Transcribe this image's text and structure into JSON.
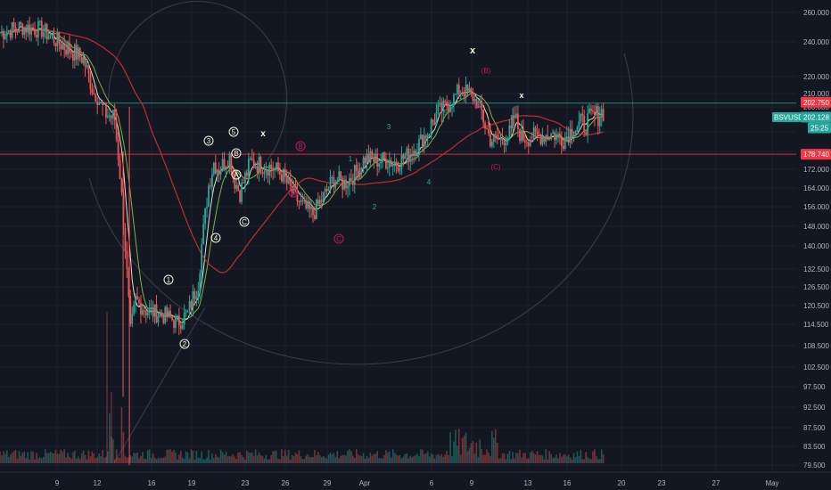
{
  "symbol": "BSVUSD",
  "chart_data": {
    "type": "candlestick",
    "price_axis": {
      "ticks": [
        260.0,
        240.0,
        220.0,
        210.0,
        200.0,
        190.0,
        180.0,
        172.0,
        164.0,
        156.0,
        148.0,
        140.0,
        132.5,
        126.5,
        120.5,
        114.5,
        108.5,
        102.5,
        97.5,
        92.5,
        87.5,
        83.5,
        79.5
      ],
      "tick_labels": [
        "260.000",
        "240.000",
        "220.000",
        "210.000",
        "200.000",
        "",
        "",
        "172.000",
        "164.000",
        "156.000",
        "148.000",
        "140.000",
        "132.500",
        "126.500",
        "120.500",
        "114.500",
        "108.500",
        "102.500",
        "97.500",
        "92.500",
        "87.500",
        "83.500",
        "79.500"
      ]
    },
    "time_axis": {
      "labels": [
        "9",
        "12",
        "16",
        "19",
        "23",
        "26",
        "29",
        "Apr",
        "6",
        "9",
        "13",
        "16",
        "20",
        "23",
        "27",
        "May"
      ]
    },
    "price_badges": [
      {
        "value": "202.750",
        "color": "#f23645"
      },
      {
        "value": "202.128",
        "prefix": "BSVUSD",
        "color": "#26a69a"
      },
      {
        "value": "25:25",
        "color": "#26a69a"
      },
      {
        "value": "178.740",
        "color": "#f23645"
      }
    ],
    "horizontal_lines": [
      {
        "price": 202.75,
        "color": "#26a69a"
      },
      {
        "price": 178.74,
        "color": "#f23645"
      }
    ],
    "wave_labels": [
      "1",
      "2",
      "3",
      "4",
      "5",
      "A",
      "B",
      "C",
      "x",
      "(A)",
      "(B)",
      "(C)"
    ],
    "close_path": [
      [
        0,
        246
      ],
      [
        2,
        250
      ],
      [
        4,
        248
      ],
      [
        6,
        238
      ],
      [
        8,
        230
      ],
      [
        9,
        210
      ],
      [
        10,
        198
      ],
      [
        11,
        195
      ],
      [
        11.5,
        170
      ],
      [
        12,
        140
      ],
      [
        12.5,
        112
      ],
      [
        13,
        122
      ],
      [
        14,
        119
      ],
      [
        15,
        118
      ],
      [
        16,
        117
      ],
      [
        17,
        115
      ],
      [
        18,
        118
      ],
      [
        19,
        128
      ],
      [
        20,
        165
      ],
      [
        20.5,
        175
      ],
      [
        21,
        172
      ],
      [
        22,
        178
      ],
      [
        22.5,
        167
      ],
      [
        23,
        162
      ],
      [
        24,
        175
      ],
      [
        25,
        174
      ],
      [
        26,
        173
      ],
      [
        27,
        170
      ],
      [
        28,
        162
      ],
      [
        29,
        156
      ],
      [
        30,
        153
      ],
      [
        31,
        160
      ],
      [
        32,
        168
      ],
      [
        33,
        166
      ],
      [
        34,
        170
      ],
      [
        35,
        177
      ],
      [
        36,
        176
      ],
      [
        37,
        176
      ],
      [
        38,
        175
      ],
      [
        39,
        178
      ],
      [
        40,
        183
      ],
      [
        41,
        190
      ],
      [
        42,
        198
      ],
      [
        43,
        202
      ],
      [
        44,
        212
      ],
      [
        45,
        210
      ],
      [
        46,
        200
      ],
      [
        47,
        186
      ],
      [
        48,
        186
      ],
      [
        49,
        189
      ],
      [
        49.3,
        196
      ],
      [
        50,
        187
      ],
      [
        51,
        187
      ],
      [
        52,
        188
      ],
      [
        53,
        189
      ],
      [
        54,
        186
      ],
      [
        55,
        192
      ],
      [
        56,
        193
      ],
      [
        57,
        196
      ],
      [
        58,
        199
      ]
    ]
  }
}
